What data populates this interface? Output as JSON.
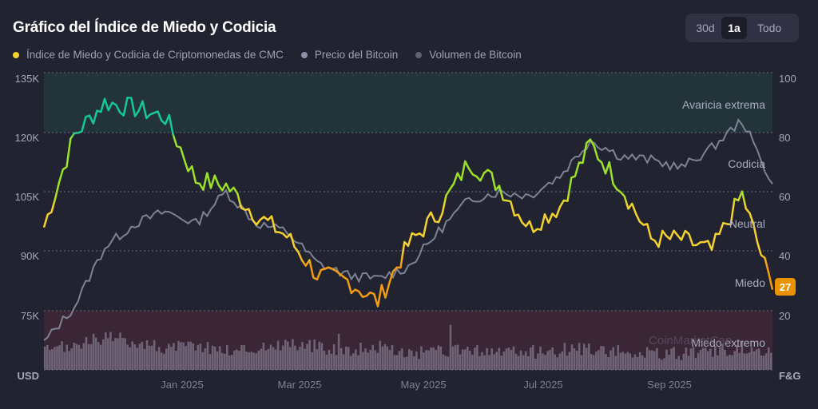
{
  "header": {
    "title": "Gráfico del Índice de Miedo y Codicia"
  },
  "legend": [
    {
      "label": "Índice de Miedo y Codicia de Criptomonedas de CMC",
      "color": "#f5d130"
    },
    {
      "label": "Precio del Bitcoin",
      "color": "#8c90a8"
    },
    {
      "label": "Volumen de Bitcoin",
      "color": "#5f6274"
    }
  ],
  "range_selector": {
    "options": [
      "30d",
      "1a",
      "Todo"
    ],
    "selected": "1a"
  },
  "axes": {
    "left_unit": "USD",
    "right_unit": "F&G",
    "left_ticks": [
      "135K",
      "120K",
      "105K",
      "90K",
      "75K"
    ],
    "right_ticks": [
      "100",
      "80",
      "60",
      "40",
      "20"
    ],
    "x_ticks": [
      "Jan 2025",
      "Mar 2025",
      "May 2025",
      "Jul 2025",
      "Sep 2025"
    ]
  },
  "zones": {
    "extreme_greed": "Avaricia extrema",
    "greed": "Codicia",
    "neutral": "Neutral",
    "fear": "Miedo",
    "extreme_fear": "Miedo extremo"
  },
  "current_value_badge": "27",
  "watermark": "CoinMarketCap",
  "colors": {
    "background": "#222331",
    "extreme_greed_zone": "#22333a",
    "extreme_fear_zone": "#3a2635",
    "badge": "#ea9300",
    "price_line": "#7d8296",
    "volume_bars": "#6f6477"
  },
  "chart_data": {
    "type": "line",
    "title": "Gráfico del Índice de Miedo y Codicia",
    "x": [
      "2024-10-20",
      "2024-11-05",
      "2024-11-20",
      "2024-12-05",
      "2024-12-20",
      "2025-01-05",
      "2025-01-20",
      "2025-02-05",
      "2025-02-20",
      "2025-03-05",
      "2025-03-20",
      "2025-04-05",
      "2025-04-20",
      "2025-05-05",
      "2025-05-20",
      "2025-06-05",
      "2025-06-20",
      "2025-07-05",
      "2025-07-20",
      "2025-08-05",
      "2025-08-20",
      "2025-09-05",
      "2025-09-20",
      "2025-10-05",
      "2025-10-18"
    ],
    "series": [
      {
        "name": "Índice de Miedo y Codicia de Criptomonedas de CMC",
        "axis": "right",
        "values": [
          48,
          79,
          90,
          88,
          85,
          64,
          62,
          52,
          45,
          32,
          30,
          23,
          42,
          53,
          70,
          62,
          48,
          55,
          76,
          62,
          44,
          44,
          40,
          59,
          27
        ]
      },
      {
        "name": "Precio del Bitcoin",
        "axis": "left",
        "values": [
          67000,
          76000,
          91000,
          97000,
          100000,
          97000,
          105000,
          97000,
          95000,
          87000,
          84000,
          83000,
          86000,
          95000,
          103000,
          105000,
          104000,
          109000,
          118000,
          114000,
          113000,
          111000,
          116000,
          123000,
          107000
        ]
      },
      {
        "name": "Volumen de Bitcoin",
        "axis": "left",
        "values_relative": [
          0.3,
          0.5,
          0.7,
          0.6,
          0.4,
          0.5,
          0.35,
          0.4,
          0.55,
          0.45,
          0.35,
          0.45,
          0.25,
          0.3,
          0.35,
          0.3,
          0.3,
          0.35,
          0.4,
          0.3,
          0.25,
          0.25,
          0.3,
          0.4,
          0.35
        ]
      }
    ],
    "left_axis": {
      "label": "USD",
      "ticks": [
        135000,
        120000,
        105000,
        90000,
        75000
      ]
    },
    "right_axis": {
      "label": "F&G",
      "ylim": [
        0,
        100
      ],
      "ticks": [
        100,
        80,
        60,
        40,
        20
      ]
    },
    "zones": [
      {
        "label": "Avaricia extrema",
        "range": [
          80,
          100
        ]
      },
      {
        "label": "Codicia",
        "range": [
          60,
          80
        ]
      },
      {
        "label": "Neutral",
        "range": [
          40,
          60
        ]
      },
      {
        "label": "Miedo",
        "range": [
          20,
          40
        ]
      },
      {
        "label": "Miedo extremo",
        "range": [
          0,
          20
        ]
      }
    ],
    "x_tick_labels": [
      "Jan 2025",
      "Mar 2025",
      "May 2025",
      "Jul 2025",
      "Sep 2025"
    ],
    "current_value": 27,
    "grid": "horizontal dotted",
    "legend_position": "top-left"
  }
}
